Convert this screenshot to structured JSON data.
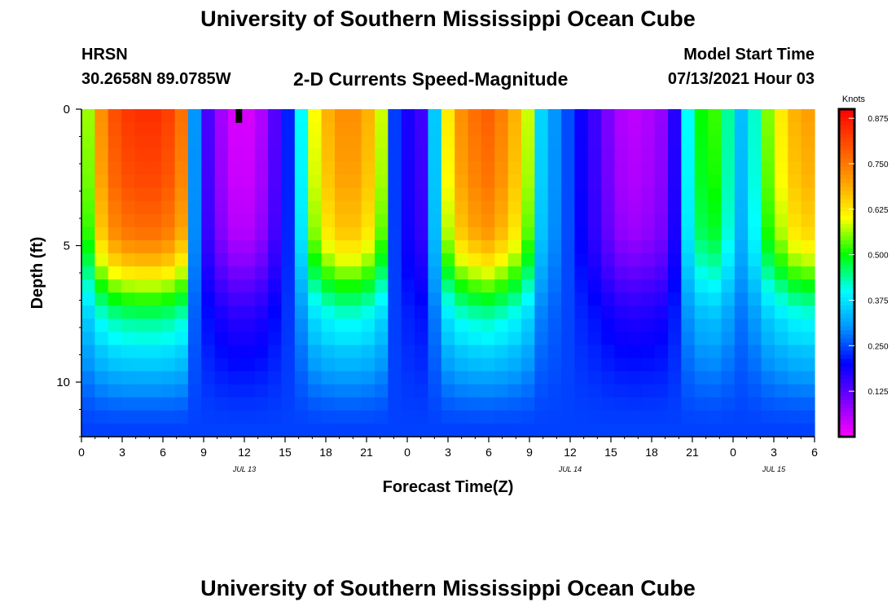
{
  "page": {
    "title_top": "University of Southern Mississippi Ocean Cube",
    "title_bottom": "University of Southern Mississippi Ocean Cube",
    "station": "HRSN",
    "coords": "30.2658N  89.0785W",
    "subtitle": "2-D Currents Speed-Magnitude",
    "model_start_label": "Model Start Time",
    "model_start_value": "07/13/2021 Hour 03"
  },
  "chart_data": {
    "type": "heatmap",
    "title": "2-D Currents Speed-Magnitude",
    "xlabel": "Forecast Time(Z)",
    "ylabel": "Depth (ft)",
    "x_hours_range": [
      0,
      54
    ],
    "y_depth_range_ft": [
      0,
      12
    ],
    "y_ticks": [
      0,
      5,
      10
    ],
    "x_ticks": [
      {
        "hour": 0,
        "label": "0"
      },
      {
        "hour": 3,
        "label": "3"
      },
      {
        "hour": 6,
        "label": "6"
      },
      {
        "hour": 9,
        "label": "9"
      },
      {
        "hour": 12,
        "label": "12"
      },
      {
        "hour": 15,
        "label": "15"
      },
      {
        "hour": 18,
        "label": "18"
      },
      {
        "hour": 21,
        "label": "21"
      },
      {
        "hour": 24,
        "label": "0"
      },
      {
        "hour": 27,
        "label": "3"
      },
      {
        "hour": 30,
        "label": "6"
      },
      {
        "hour": 33,
        "label": "9"
      },
      {
        "hour": 36,
        "label": "12"
      },
      {
        "hour": 39,
        "label": "15"
      },
      {
        "hour": 42,
        "label": "18"
      },
      {
        "hour": 45,
        "label": "21"
      },
      {
        "hour": 48,
        "label": "0"
      },
      {
        "hour": 51,
        "label": "3"
      },
      {
        "hour": 54,
        "label": "6"
      }
    ],
    "date_labels": [
      {
        "hour": 12,
        "label": "JUL 13"
      },
      {
        "hour": 36,
        "label": "JUL 14"
      },
      {
        "hour": 51,
        "label": "JUL 15"
      }
    ],
    "colorbar": {
      "unit": "Knots",
      "min": 0.0,
      "max": 0.9,
      "ticks": [
        "0.125",
        "0.250",
        "0.375",
        "0.500",
        "0.625",
        "0.750",
        "0.875"
      ],
      "colors": [
        "#ff00ff",
        "#7a00ff",
        "#0000ff",
        "#0096ff",
        "#00ffff",
        "#00ff00",
        "#ffff00",
        "#ffa000",
        "#ff5000",
        "#ff0000"
      ]
    },
    "marker": {
      "hour": 11.6,
      "depth_ft": 0.25,
      "color": "#000000"
    },
    "surface_speed_knots": [
      0.56,
      0.72,
      0.8,
      0.83,
      0.84,
      0.84,
      0.82,
      0.76,
      0.3,
      0.14,
      0.07,
      0.03,
      0.03,
      0.06,
      0.13,
      0.22,
      0.4,
      0.6,
      0.68,
      0.72,
      0.72,
      0.68,
      0.58,
      0.24,
      0.18,
      0.15,
      0.35,
      0.62,
      0.72,
      0.76,
      0.78,
      0.74,
      0.68,
      0.58,
      0.36,
      0.3,
      0.25,
      0.19,
      0.15,
      0.1,
      0.06,
      0.05,
      0.06,
      0.08,
      0.17,
      0.4,
      0.5,
      0.52,
      0.44,
      0.34,
      0.42,
      0.55,
      0.62,
      0.68,
      0.7
    ],
    "depth_factor": [
      1.0,
      0.99,
      0.98,
      0.97,
      0.96,
      0.95,
      0.93,
      0.91,
      0.89,
      0.86,
      0.8,
      0.73,
      0.64,
      0.55,
      0.46,
      0.38,
      0.32,
      0.28,
      0.22,
      0.18,
      0.13,
      0.09,
      0.05,
      0.02,
      0.0
    ],
    "near_bottom_floor_knots": 0.27
  }
}
